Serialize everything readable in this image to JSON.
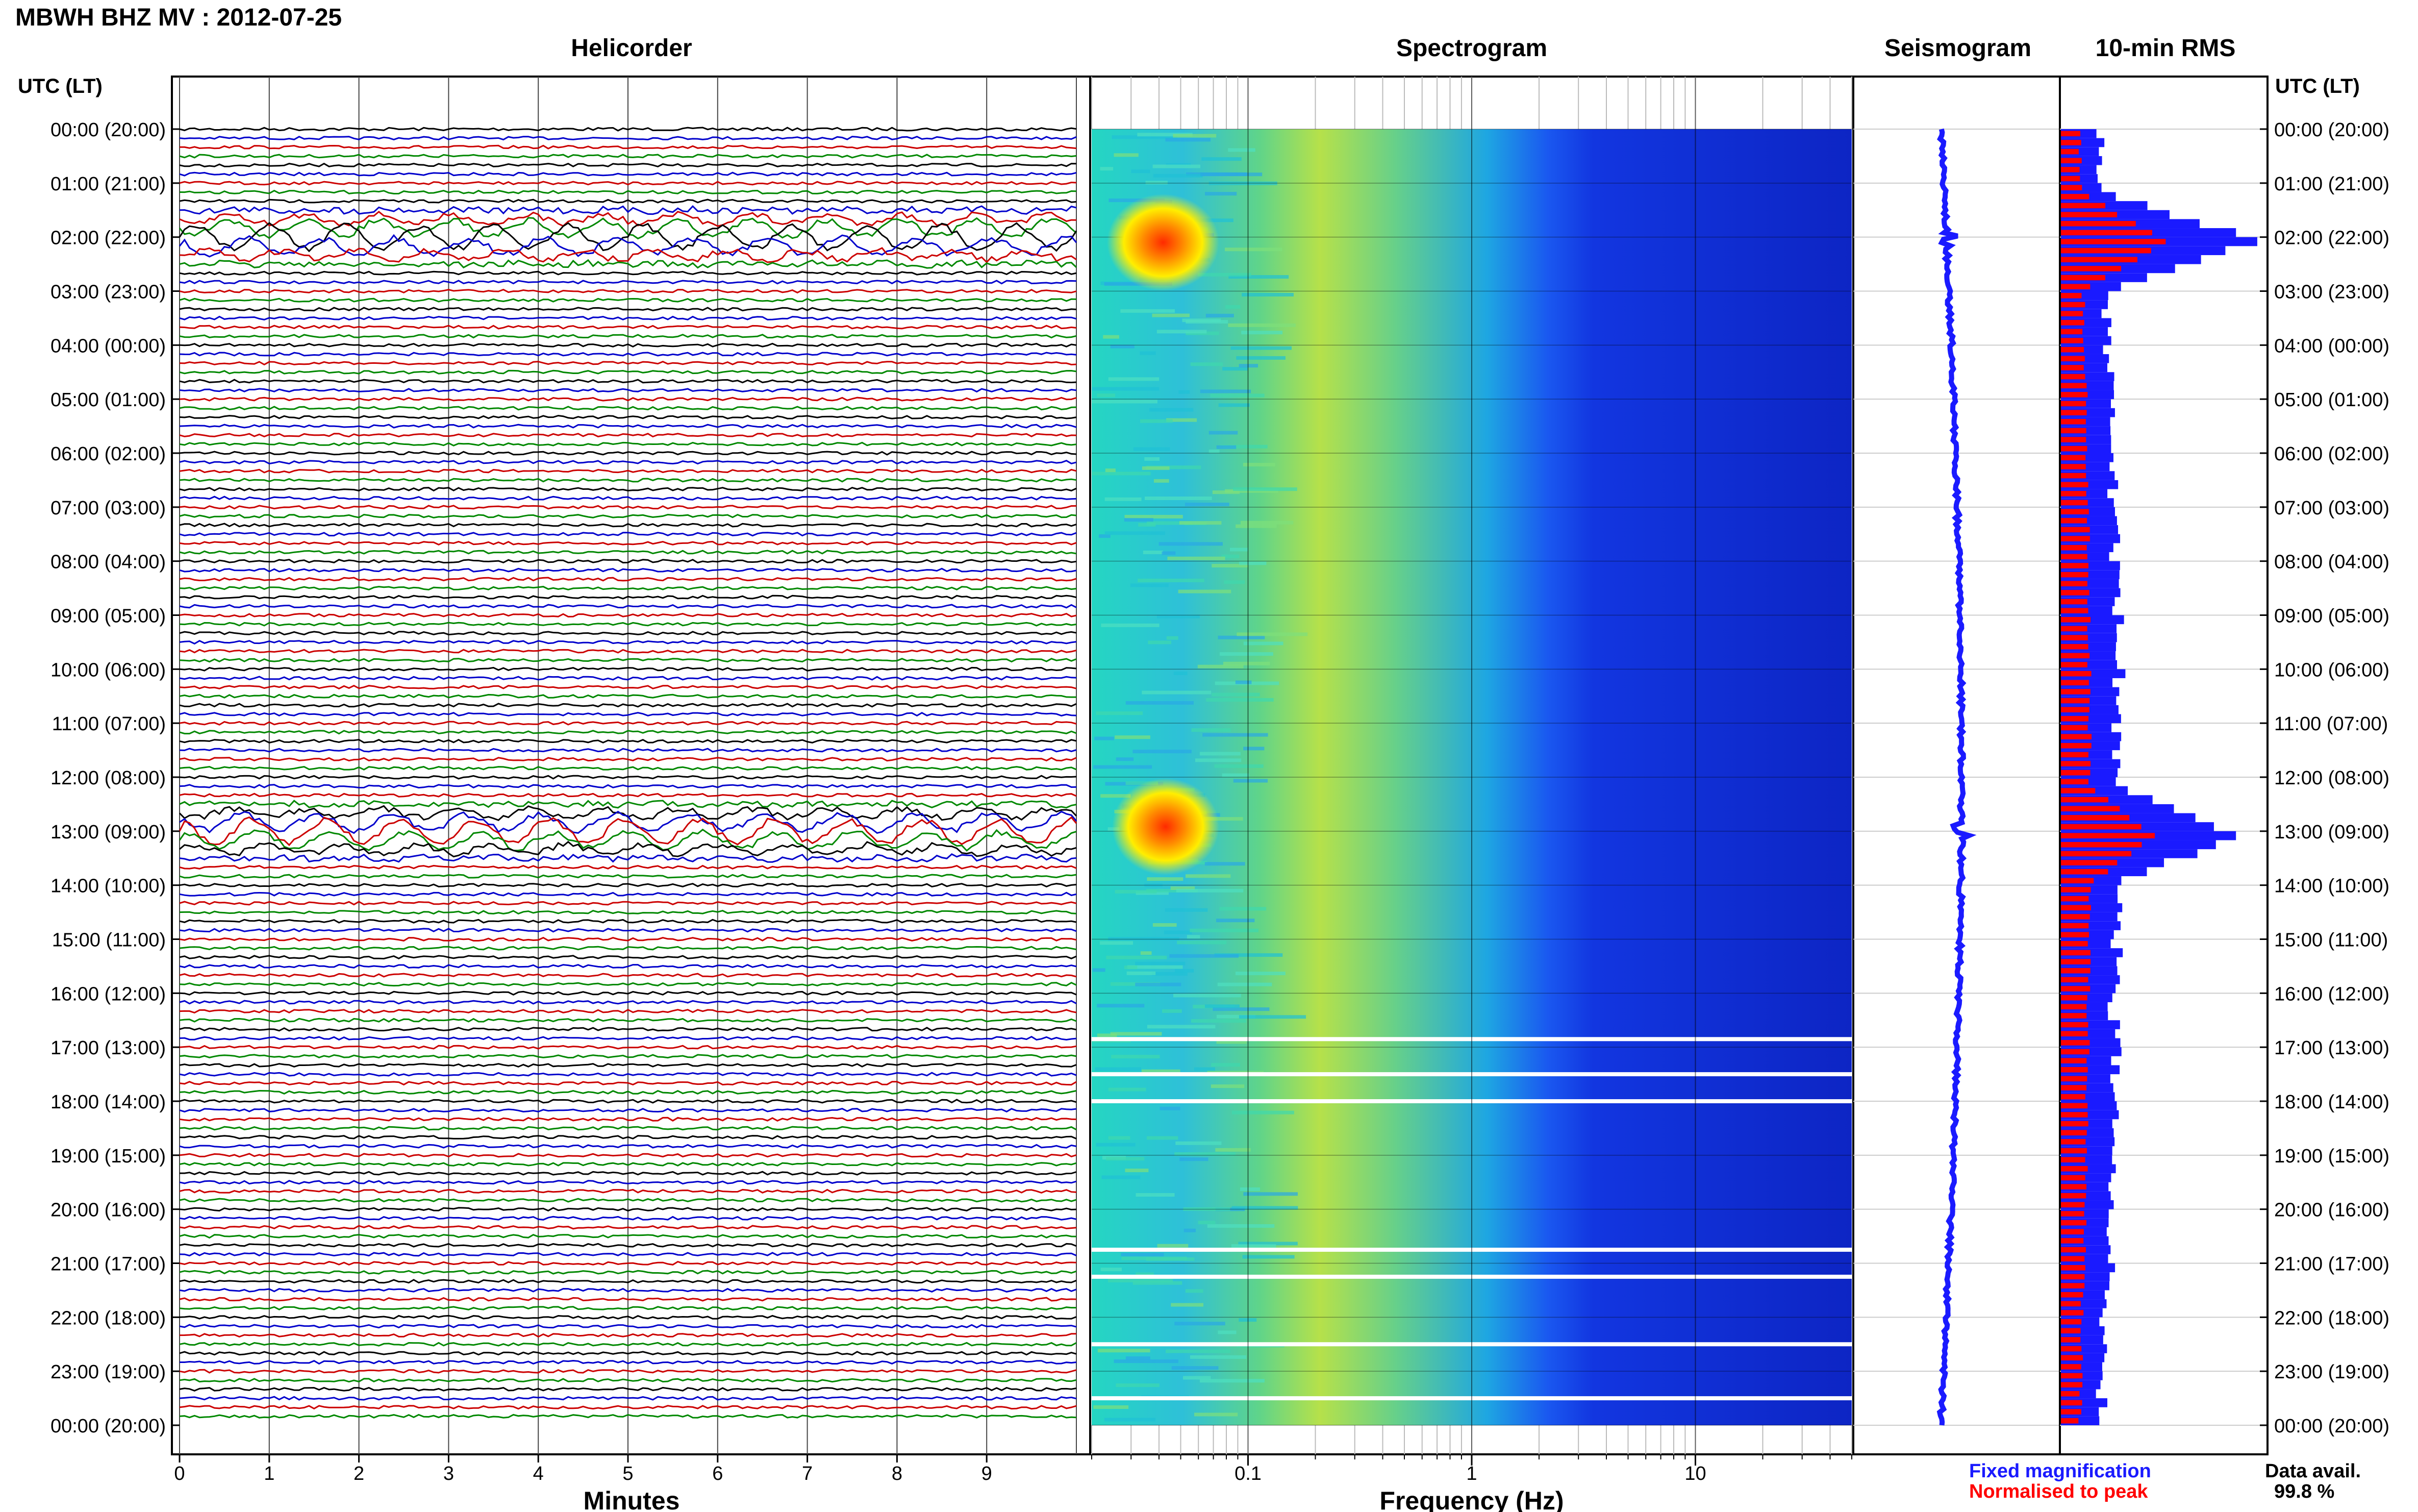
{
  "header": {
    "title": "MBWH BHZ MV : 2012-07-25"
  },
  "panels": {
    "helicorder": "Helicorder",
    "spectrogram": "Spectrogram",
    "seismogram": "Seismogram",
    "rms": "10-min RMS"
  },
  "axes": {
    "time_header_left": "UTC (LT)",
    "time_header_right": "UTC (LT)",
    "minutes_label": "Minutes",
    "frequency_label": "Frequency (Hz)",
    "minute_ticks": [
      "0",
      "1",
      "2",
      "3",
      "4",
      "5",
      "6",
      "7",
      "8",
      "9"
    ],
    "freq_ticks": [
      "0.1",
      "1",
      "10"
    ],
    "time_labels": [
      "00:00 (20:00)",
      "01:00 (21:00)",
      "02:00 (22:00)",
      "03:00 (23:00)",
      "04:00 (00:00)",
      "05:00 (01:00)",
      "06:00 (02:00)",
      "07:00 (03:00)",
      "08:00 (04:00)",
      "09:00 (05:00)",
      "10:00 (06:00)",
      "11:00 (07:00)",
      "12:00 (08:00)",
      "13:00 (09:00)",
      "14:00 (10:00)",
      "15:00 (11:00)",
      "16:00 (12:00)",
      "17:00 (13:00)",
      "18:00 (14:00)",
      "19:00 (15:00)",
      "20:00 (16:00)",
      "21:00 (17:00)",
      "22:00 (18:00)",
      "23:00 (19:00)",
      "00:00 (20:00)"
    ]
  },
  "legend": {
    "fixed": "Fixed magnification",
    "normalised": "Normalised to peak",
    "fixed_color": "#1a1aff",
    "normalised_color": "#ff0000",
    "avail_label": "Data avail.",
    "avail_value": "99.8 %"
  },
  "chart_data": {
    "type": "heatmap",
    "title": "MBWH BHZ MV : 2012-07-25",
    "helicorder": {
      "xlabel": "Minutes",
      "xlim": [
        0,
        10
      ],
      "lines": 144,
      "line_colors": [
        "#000000",
        "#0000cc",
        "#cc0000",
        "#008800"
      ],
      "events_utc_hours": [
        2.0,
        13.0
      ]
    },
    "spectrogram": {
      "xlabel": "Frequency (Hz)",
      "xscale": "log",
      "xlim": [
        0.02,
        50
      ],
      "colormap": "jet",
      "high_energy_hz": [
        0.04,
        0.08
      ]
    },
    "rms": {
      "rows": 144,
      "fixed_color": "#1a1aff",
      "normalised_color": "#ff0000",
      "peaks_utc_hours": [
        2.0,
        13.0
      ]
    },
    "data_availability_percent": 99.8
  }
}
